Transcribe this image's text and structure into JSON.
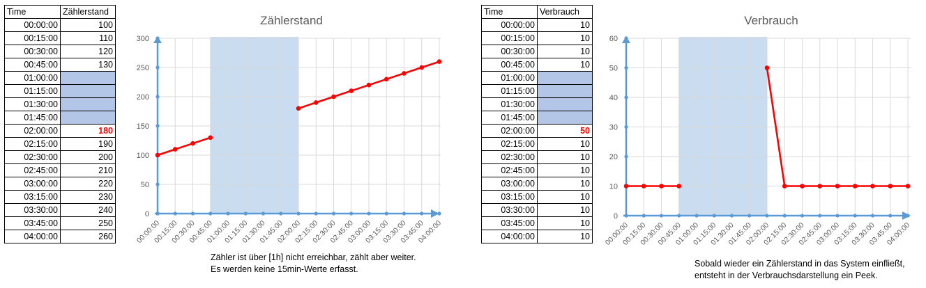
{
  "left": {
    "columns": [
      "Time",
      "Zählerstand"
    ],
    "rows": [
      {
        "time": "00:00:00",
        "value": "100"
      },
      {
        "time": "00:15:00",
        "value": "110"
      },
      {
        "time": "00:30:00",
        "value": "120"
      },
      {
        "time": "00:45:00",
        "value": "130"
      },
      {
        "time": "01:00:00",
        "value": ""
      },
      {
        "time": "01:15:00",
        "value": ""
      },
      {
        "time": "01:30:00",
        "value": ""
      },
      {
        "time": "01:45:00",
        "value": ""
      },
      {
        "time": "02:00:00",
        "value": "180"
      },
      {
        "time": "02:15:00",
        "value": "190"
      },
      {
        "time": "02:30:00",
        "value": "200"
      },
      {
        "time": "02:45:00",
        "value": "210"
      },
      {
        "time": "03:00:00",
        "value": "220"
      },
      {
        "time": "03:15:00",
        "value": "230"
      },
      {
        "time": "03:30:00",
        "value": "240"
      },
      {
        "time": "03:45:00",
        "value": "250"
      },
      {
        "time": "04:00:00",
        "value": "260"
      }
    ],
    "caption_lines": [
      "Zähler ist über [1h] nicht erreichbar, zählt aber weiter.",
      "Es werden keine 15min-Werte erfasst."
    ]
  },
  "right": {
    "columns": [
      "Time",
      "Verbrauch"
    ],
    "rows": [
      {
        "time": "00:00:00",
        "value": "10"
      },
      {
        "time": "00:15:00",
        "value": "10"
      },
      {
        "time": "00:30:00",
        "value": "10"
      },
      {
        "time": "00:45:00",
        "value": "10"
      },
      {
        "time": "01:00:00",
        "value": ""
      },
      {
        "time": "01:15:00",
        "value": ""
      },
      {
        "time": "01:30:00",
        "value": ""
      },
      {
        "time": "01:45:00",
        "value": ""
      },
      {
        "time": "02:00:00",
        "value": "50"
      },
      {
        "time": "02:15:00",
        "value": "10"
      },
      {
        "time": "02:30:00",
        "value": "10"
      },
      {
        "time": "02:45:00",
        "value": "10"
      },
      {
        "time": "03:00:00",
        "value": "10"
      },
      {
        "time": "03:15:00",
        "value": "10"
      },
      {
        "time": "03:30:00",
        "value": "10"
      },
      {
        "time": "03:45:00",
        "value": "10"
      },
      {
        "time": "04:00:00",
        "value": "10"
      }
    ],
    "caption_lines": [
      "Sobald wieder ein Zählerstand in das System einfließt,",
      "entsteht in der Verbrauchsdarstellung ein Peek."
    ]
  },
  "colors": {
    "line": "#ff0000",
    "axis": "#5b9bd5",
    "gap_shade": "#c9dcf0",
    "missing_cell": "#b4c6e7",
    "grid": "#d9d9d9",
    "tick_text": "#595959",
    "title_text": "#595959"
  },
  "chart_data": [
    {
      "type": "line",
      "title": "Zählerstand",
      "categories": [
        "00:00:00",
        "00:15:00",
        "00:30:00",
        "00:45:00",
        "01:00:00",
        "01:15:00",
        "01:30:00",
        "01:45:00",
        "02:00:00",
        "02:15:00",
        "02:30:00",
        "02:45:00",
        "03:00:00",
        "03:15:00",
        "03:30:00",
        "03:45:00",
        "04:00:00"
      ],
      "values": [
        100,
        110,
        120,
        130,
        null,
        null,
        null,
        null,
        180,
        190,
        200,
        210,
        220,
        230,
        240,
        250,
        260
      ],
      "ylim": [
        0,
        300
      ],
      "yticks": [
        0,
        50,
        100,
        150,
        200,
        250,
        300
      ],
      "shaded_range": [
        "00:45:00",
        "02:00:00"
      ],
      "grid": true
    },
    {
      "type": "line",
      "title": "Verbrauch",
      "categories": [
        "00:00:00",
        "00:15:00",
        "00:30:00",
        "00:45:00",
        "01:00:00",
        "01:15:00",
        "01:30:00",
        "01:45:00",
        "02:00:00",
        "02:15:00",
        "02:30:00",
        "02:45:00",
        "03:00:00",
        "03:15:00",
        "03:30:00",
        "03:45:00",
        "04:00:00"
      ],
      "values": [
        10,
        10,
        10,
        10,
        null,
        null,
        null,
        null,
        50,
        10,
        10,
        10,
        10,
        10,
        10,
        10,
        10
      ],
      "ylim": [
        0,
        60
      ],
      "yticks": [
        0,
        10,
        20,
        30,
        40,
        50,
        60
      ],
      "shaded_range": [
        "00:45:00",
        "02:00:00"
      ],
      "grid": true
    }
  ]
}
